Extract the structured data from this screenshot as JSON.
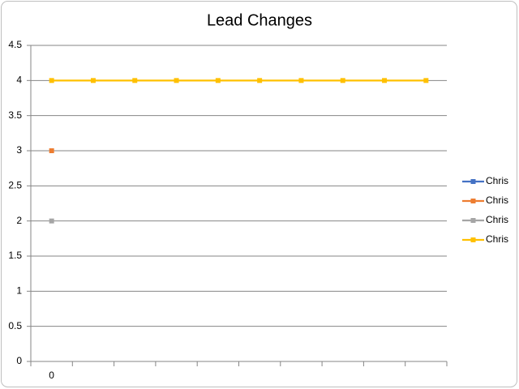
{
  "chart_data": {
    "type": "line",
    "title": "Lead Changes",
    "categories": [
      "0",
      null,
      null,
      null,
      null,
      null,
      null,
      null,
      null,
      null
    ],
    "series": [
      {
        "name": "Chris",
        "color": "#4472c4",
        "values": [
          null,
          null,
          null,
          null,
          null,
          null,
          null,
          null,
          null,
          null
        ]
      },
      {
        "name": "Chris",
        "color": "#ed7d31",
        "values": [
          3,
          null,
          null,
          null,
          null,
          null,
          null,
          null,
          null,
          null
        ]
      },
      {
        "name": "Chris",
        "color": "#a5a5a5",
        "values": [
          2,
          null,
          null,
          null,
          null,
          null,
          null,
          null,
          null,
          null
        ]
      },
      {
        "name": "Chris",
        "color": "#ffc000",
        "values": [
          4,
          4,
          4,
          4,
          4,
          4,
          4,
          4,
          4,
          4
        ]
      }
    ],
    "ylim": [
      0,
      4.5
    ],
    "yticks": [
      0,
      0.5,
      1,
      1.5,
      2,
      2.5,
      3,
      3.5,
      4,
      4.5
    ],
    "grid": true,
    "legend": "right"
  }
}
